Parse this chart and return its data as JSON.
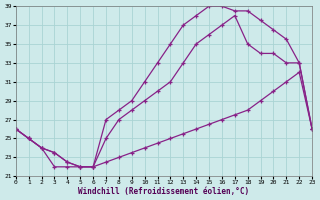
{
  "xlabel": "Windchill (Refroidissement éolien,°C)",
  "background_color": "#ceeaea",
  "grid_color": "#aad4d4",
  "line_color": "#882288",
  "xlim": [
    0,
    23
  ],
  "ylim": [
    21,
    39
  ],
  "yticks": [
    21,
    23,
    25,
    27,
    29,
    31,
    33,
    35,
    37,
    39
  ],
  "xticks": [
    0,
    1,
    2,
    3,
    4,
    5,
    6,
    7,
    8,
    9,
    10,
    11,
    12,
    13,
    14,
    15,
    16,
    17,
    18,
    19,
    20,
    21,
    22,
    23
  ],
  "line1_x": [
    0,
    1,
    2,
    3,
    4,
    5,
    6,
    7,
    8,
    9,
    10,
    11,
    12,
    13,
    14,
    15,
    16,
    17,
    18,
    19,
    20,
    21,
    22,
    23
  ],
  "line1_y": [
    26,
    25,
    24,
    23.5,
    22.5,
    22,
    22,
    22.5,
    23,
    23.5,
    24,
    24.5,
    25,
    25.5,
    26,
    26.5,
    27,
    27.5,
    28,
    29,
    30,
    31,
    32,
    26
  ],
  "line2_x": [
    0,
    1,
    2,
    3,
    4,
    5,
    6,
    7,
    8,
    9,
    10,
    11,
    12,
    13,
    14,
    15,
    16,
    17,
    18,
    19,
    20,
    21,
    22,
    23
  ],
  "line2_y": [
    26,
    25,
    24,
    23.5,
    22.5,
    22,
    22,
    25,
    27,
    28,
    29,
    30,
    31,
    33,
    35,
    36,
    37,
    38,
    35,
    34,
    34,
    33,
    33,
    26
  ],
  "line3_x": [
    0,
    1,
    2,
    3,
    4,
    5,
    6,
    7,
    8,
    9,
    10,
    11,
    12,
    13,
    14,
    15,
    16,
    17,
    18,
    19,
    20,
    21,
    22,
    23
  ],
  "line3_y": [
    26,
    25,
    24,
    22,
    22,
    22,
    22,
    27,
    28,
    29,
    31,
    33,
    35,
    37,
    38,
    39,
    39,
    38.5,
    38.5,
    37.5,
    36.5,
    35.5,
    33,
    26
  ]
}
